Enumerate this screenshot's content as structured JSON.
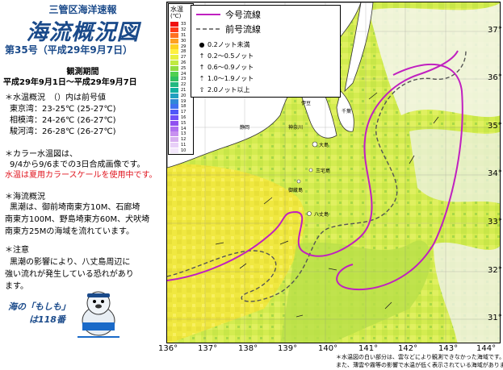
{
  "header": {
    "agency": "三管区海洋速報",
    "title": "海流概況図",
    "issue": "第35号（平成29年9月7日）",
    "period_label": "観測期間",
    "period": "平成29年9月1日～平成29年9月7日"
  },
  "water_temp": {
    "heading": "＊水温概況　（）内は前号値",
    "rows": [
      {
        "area": "東京湾：",
        "value": "23-25℃",
        "prev": "(25-27℃)"
      },
      {
        "area": "相模湾：",
        "value": "24-26℃",
        "prev": "(26-27℃)"
      },
      {
        "area": "駿河湾：",
        "value": "26-28℃",
        "prev": "(26-27℃)"
      }
    ]
  },
  "color_note": {
    "line1": "＊カラー水温図は、",
    "line2": "9/4から9/6までの3日合成画像です。",
    "line3": "水温は夏用カラースケールを使用中です。"
  },
  "current": {
    "heading": "＊海流概況",
    "lines": [
      "黒潮は、御前埼南東方10M、石廊埼",
      "南東方100M、野島埼東方60M、犬吠埼",
      "南東方25Mの海域を流れています。"
    ]
  },
  "caution": {
    "heading": "＊注意",
    "lines": [
      "黒潮の影響により、八丈島周辺に",
      "強い流れが発生している恐れがあり",
      "ます。"
    ]
  },
  "motto": {
    "line1": "海の「もしも」",
    "line2": "は118番"
  },
  "legend": {
    "current_label": "今号流線",
    "previous_label": "前号流線",
    "speeds": [
      "0.2ノット未満",
      "0.2～0.5ノット",
      "0.6～0.9ノット",
      "1.0～1.9ノット",
      "2.0ノット以上"
    ]
  },
  "colorbar": {
    "title": "水温",
    "unit": "(℃)",
    "ticks": [
      "33",
      "32",
      "31",
      "30",
      "29",
      "28",
      "27",
      "26",
      "25",
      "24",
      "23",
      "22",
      "21",
      "20",
      "19",
      "18",
      "17",
      "16",
      "15",
      "14",
      "13",
      "12",
      "11",
      "10"
    ],
    "colors": [
      "#f01010",
      "#ff3a1a",
      "#ff7020",
      "#ffa020",
      "#ffd020",
      "#fff040",
      "#e8f040",
      "#c0ea40",
      "#90dc40",
      "#50d050",
      "#30c060",
      "#20b880",
      "#10b0a0",
      "#20a0c0",
      "#3088d8",
      "#4070f0",
      "#5058f8",
      "#7050f8",
      "#9050f0",
      "#b070f0",
      "#c890f0",
      "#d8b0f0",
      "#e8d0f8",
      "#f4e8fc"
    ]
  },
  "places": [
    "伊豆",
    "大島",
    "三宅島",
    "御蔵島",
    "八丈島",
    "東京",
    "千葉",
    "静岡",
    "神奈川"
  ],
  "lon_labels": [
    "136°",
    "137°",
    "138°",
    "139°",
    "140°",
    "141°",
    "142°",
    "143°",
    "144°"
  ],
  "lat_labels": [
    "37°",
    "36°",
    "35°",
    "34°",
    "33°",
    "32°",
    "31°"
  ],
  "footnote": {
    "line1": "＊水温図の白い部分は、雲などにより観測できなかった海域です。",
    "line2": "また、薄雲や霧等の影響で水温が低く表示されている海域があります。"
  },
  "colors": {
    "current_line": "#c020c0",
    "previous_line": "#555555",
    "title_blue": "#1a4a8a",
    "alert_red": "#e0141e"
  }
}
